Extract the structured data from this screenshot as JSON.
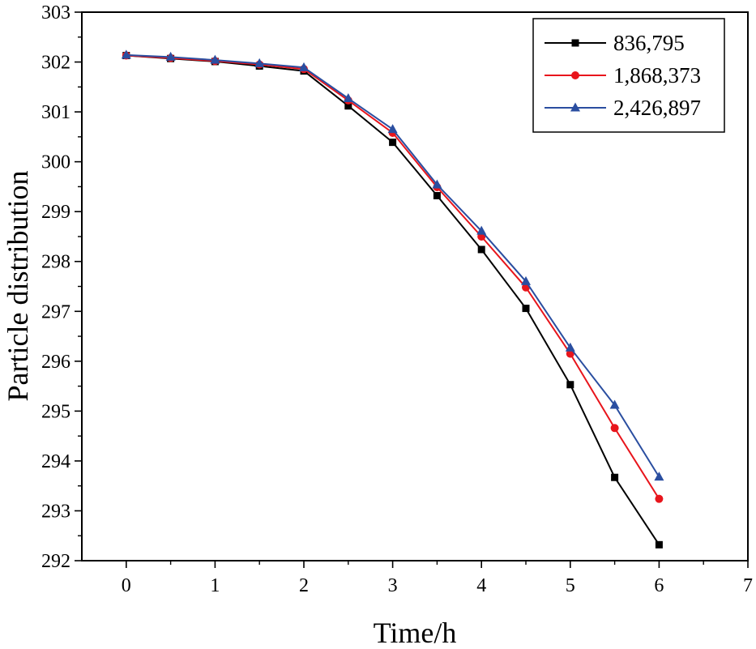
{
  "chart_data": {
    "type": "line",
    "title": "",
    "xlabel": "Time/h",
    "ylabel": "Particle distribution",
    "xlim": [
      -0.5,
      7
    ],
    "ylim": [
      292,
      303
    ],
    "xticks": [
      0,
      1,
      2,
      3,
      4,
      5,
      6,
      7
    ],
    "yticks": [
      292,
      293,
      294,
      295,
      296,
      297,
      298,
      299,
      300,
      301,
      302,
      303
    ],
    "grid": false,
    "legend_position": "top-right",
    "x": [
      0,
      0.5,
      1,
      1.5,
      2,
      2.5,
      3,
      3.5,
      4,
      4.5,
      5,
      5.5,
      6
    ],
    "series": [
      {
        "name": "836,795",
        "color": "#000000",
        "marker": "square",
        "values": [
          302.13,
          302.07,
          302.01,
          301.92,
          301.82,
          301.12,
          300.39,
          299.32,
          298.24,
          297.06,
          295.53,
          293.67,
          292.32
        ]
      },
      {
        "name": "1,868,373",
        "color": "#e8151c",
        "marker": "circle",
        "values": [
          302.13,
          302.08,
          302.02,
          301.95,
          301.86,
          301.23,
          300.58,
          299.49,
          298.5,
          297.48,
          296.15,
          294.66,
          293.24
        ]
      },
      {
        "name": "2,426,897",
        "color": "#2a4ea0",
        "marker": "triangle",
        "values": [
          302.14,
          302.1,
          302.04,
          301.97,
          301.89,
          301.27,
          300.65,
          299.54,
          298.61,
          297.6,
          296.27,
          295.12,
          293.68
        ]
      }
    ]
  }
}
